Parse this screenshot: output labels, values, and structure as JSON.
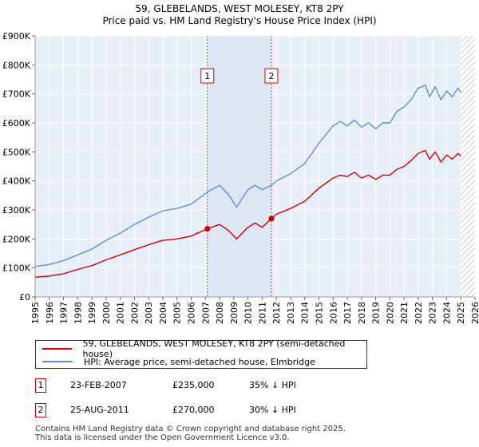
{
  "title": {
    "line1": "59, GLEBELANDS, WEST MOLESEY, KT8 2PY",
    "line2": "Price paid vs. HM Land Registry's House Price Index (HPI)"
  },
  "colors": {
    "property": "#cc0000",
    "hpi": "#5b8fd6",
    "grid": "#ffffff",
    "plot_bg": "#e8eef7",
    "shade": "#dde6f3"
  },
  "chart_data": {
    "type": "line",
    "title": "59, GLEBELANDS, WEST MOLESEY, KT8 2PY — Price paid vs. HM Land Registry's House Price Index (HPI)",
    "xlabel": "",
    "ylabel": "",
    "xlim": [
      1995,
      2026
    ],
    "ylim": [
      0,
      900000
    ],
    "x_ticks": [
      "1995",
      "1996",
      "1997",
      "1998",
      "1999",
      "2000",
      "2001",
      "2002",
      "2003",
      "2004",
      "2005",
      "2006",
      "2007",
      "2008",
      "2009",
      "2010",
      "2011",
      "2012",
      "2013",
      "2014",
      "2015",
      "2016",
      "2017",
      "2018",
      "2019",
      "2020",
      "2021",
      "2022",
      "2023",
      "2024",
      "2025",
      "2026"
    ],
    "y_ticks": [
      {
        "value": 0,
        "label": "£0"
      },
      {
        "value": 100000,
        "label": "£100K"
      },
      {
        "value": 200000,
        "label": "£200K"
      },
      {
        "value": 300000,
        "label": "£300K"
      },
      {
        "value": 400000,
        "label": "£400K"
      },
      {
        "value": 500000,
        "label": "£500K"
      },
      {
        "value": 600000,
        "label": "£600K"
      },
      {
        "value": 700000,
        "label": "£700K"
      },
      {
        "value": 800000,
        "label": "£800K"
      },
      {
        "value": 900000,
        "label": "£900K"
      }
    ],
    "shaded_regions": [
      {
        "from": 2007.14,
        "to": 2011.65
      },
      {
        "from": 2025.0,
        "to": 2026.0,
        "hatched": true
      }
    ],
    "series": [
      {
        "name": "59, GLEBELANDS, WEST MOLESEY, KT8 2PY (semi-detached house)",
        "color": "#cc0000",
        "x": [
          1995.0,
          1996.0,
          1997.0,
          1998.0,
          1999.0,
          2000.0,
          2001.0,
          2002.0,
          2003.0,
          2004.0,
          2005.0,
          2006.0,
          2007.14,
          2008.0,
          2008.6,
          2009.2,
          2010.0,
          2010.5,
          2011.0,
          2011.65,
          2012.0,
          2013.0,
          2014.0,
          2015.0,
          2016.0,
          2016.5,
          2017.0,
          2017.5,
          2018.0,
          2018.5,
          2019.0,
          2019.5,
          2020.0,
          2020.5,
          2021.0,
          2021.5,
          2022.0,
          2022.5,
          2022.8,
          2023.2,
          2023.6,
          2024.0,
          2024.4,
          2024.8,
          2025.0
        ],
        "y": [
          68000,
          72000,
          80000,
          95000,
          108000,
          128000,
          145000,
          163000,
          180000,
          195000,
          200000,
          210000,
          235000,
          250000,
          230000,
          200000,
          240000,
          255000,
          240000,
          270000,
          285000,
          305000,
          330000,
          375000,
          410000,
          420000,
          415000,
          430000,
          410000,
          420000,
          405000,
          420000,
          420000,
          440000,
          450000,
          470000,
          495000,
          505000,
          475000,
          500000,
          465000,
          490000,
          475000,
          495000,
          485000
        ]
      },
      {
        "name": "HPI: Average price, semi-detached house, Elmbridge",
        "color": "#5b8fd6",
        "x": [
          1995.0,
          1996.0,
          1997.0,
          1998.0,
          1999.0,
          2000.0,
          2001.0,
          2002.0,
          2003.0,
          2004.0,
          2005.0,
          2006.0,
          2007.14,
          2008.0,
          2008.6,
          2009.2,
          2010.0,
          2010.5,
          2011.0,
          2011.65,
          2012.0,
          2013.0,
          2014.0,
          2015.0,
          2016.0,
          2016.5,
          2017.0,
          2017.5,
          2018.0,
          2018.5,
          2019.0,
          2019.5,
          2020.0,
          2020.5,
          2021.0,
          2021.5,
          2022.0,
          2022.5,
          2022.8,
          2023.2,
          2023.6,
          2024.0,
          2024.4,
          2024.8,
          2025.0
        ],
        "y": [
          105000,
          112000,
          125000,
          145000,
          165000,
          195000,
          220000,
          250000,
          275000,
          297000,
          305000,
          320000,
          362000,
          385000,
          355000,
          310000,
          370000,
          385000,
          370000,
          385000,
          400000,
          425000,
          460000,
          530000,
          590000,
          605000,
          590000,
          610000,
          585000,
          600000,
          580000,
          600000,
          600000,
          640000,
          655000,
          680000,
          720000,
          730000,
          690000,
          725000,
          680000,
          710000,
          690000,
          720000,
          705000
        ]
      }
    ],
    "annotations": [
      {
        "label": "1",
        "x": 2007.14,
        "y": 235000
      },
      {
        "label": "2",
        "x": 2011.65,
        "y": 270000
      }
    ]
  },
  "legend": {
    "property_label": "59, GLEBELANDS, WEST MOLESEY, KT8 2PY (semi-detached house)",
    "hpi_label": "HPI: Average price, semi-detached house, Elmbridge"
  },
  "transactions": [
    {
      "num": "1",
      "date": "23-FEB-2007",
      "price": "£235,000",
      "hpi": "35% ↓ HPI"
    },
    {
      "num": "2",
      "date": "25-AUG-2011",
      "price": "£270,000",
      "hpi": "30% ↓ HPI"
    }
  ],
  "footer": {
    "line1": "Contains HM Land Registry data © Crown copyright and database right 2025.",
    "line2": "This data is licensed under the Open Government Licence v3.0."
  }
}
